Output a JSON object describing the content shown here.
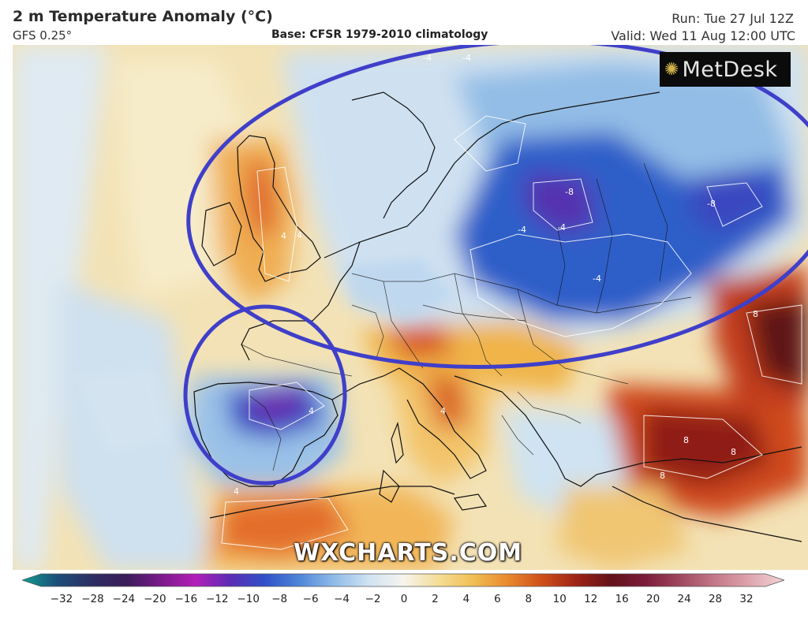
{
  "header": {
    "title": "2 m Temperature Anomaly (°C)",
    "model": "GFS 0.25°",
    "base": "Base: CFSR 1979-2010 climatology",
    "run": "Run: Tue 27 Jul 12Z",
    "valid": "Valid: Wed 11 Aug 12:00 UTC"
  },
  "logo": {
    "text": "MetDesk",
    "icon": "metdesk-burst-icon"
  },
  "watermark": "WXCHARTS.COM",
  "map": {
    "contour_labels": [
      "-4",
      "-4",
      "-4",
      "-8",
      "-8",
      "-4",
      "-4",
      "4",
      "4",
      "4",
      "4",
      "8",
      "8",
      "8",
      "8",
      "4"
    ],
    "annotations": [
      "ellipse-northern-europe",
      "circle-iberia"
    ]
  },
  "scale": {
    "ticks": [
      "-32",
      "-28",
      "-24",
      "-20",
      "-16",
      "-12",
      "-10",
      "-8",
      "-6",
      "-4",
      "-2",
      "0",
      "2",
      "4",
      "6",
      "8",
      "10",
      "12",
      "16",
      "20",
      "24",
      "28",
      "32"
    ],
    "colors": [
      "#0f9e8f",
      "#1c4f7a",
      "#2c2e63",
      "#3b1c5a",
      "#7a1a8a",
      "#b31fb8",
      "#5b2db5",
      "#3050c8",
      "#4f86d9",
      "#8fbbe8",
      "#cfe2f2",
      "#f6f4ee",
      "#f4dd96",
      "#f1bf55",
      "#e98a2d",
      "#cf4f1a",
      "#9e2316",
      "#64121a",
      "#7b1c3c",
      "#a0485e",
      "#c47888",
      "#dea5ae",
      "#f3d3d6"
    ]
  }
}
